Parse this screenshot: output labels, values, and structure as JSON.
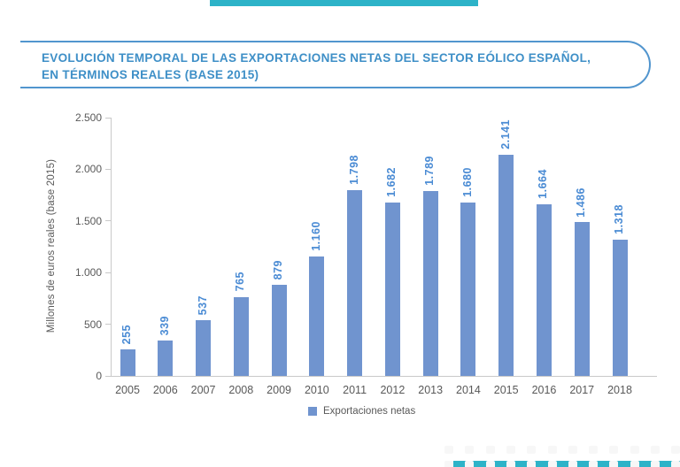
{
  "title_box": {
    "line1": "EVOLUCIÓN TEMPORAL DE LAS EXPORTACIONES NETAS DEL SECTOR EÓLICO ESPAÑOL,",
    "line2": "EN TÉRMINOS REALES (BASE 2015)"
  },
  "chart_data": {
    "type": "bar",
    "title": "EVOLUCIÓN TEMPORAL DE LAS EXPORTACIONES NETAS DEL SECTOR EÓLICO ESPAÑOL, EN TÉRMINOS REALES (BASE 2015)",
    "categories": [
      "2005",
      "2006",
      "2007",
      "2008",
      "2009",
      "2010",
      "2011",
      "2012",
      "2013",
      "2014",
      "2015",
      "2016",
      "2017",
      "2018"
    ],
    "values": [
      255,
      339,
      537,
      765,
      879,
      1160,
      1798,
      1682,
      1789,
      1680,
      2141,
      1664,
      1486,
      1318
    ],
    "value_labels": [
      "255",
      "339",
      "537",
      "765",
      "879",
      "1.160",
      "1.798",
      "1.682",
      "1.789",
      "1.680",
      "2.141",
      "1.664",
      "1.486",
      "1.318"
    ],
    "xlabel": "",
    "ylabel": "Millones de euros reales (base 2015)",
    "ylim": [
      0,
      2500
    ],
    "ytick_values": [
      0,
      500,
      1000,
      1500,
      2000,
      2500
    ],
    "ytick_labels": [
      "0",
      "500",
      "1.000",
      "1.500",
      "2.000",
      "2.500"
    ],
    "grid": false,
    "legend_position": "bottom",
    "legend": [
      {
        "label": "Exportaciones netas",
        "color": "#7094cf"
      }
    ]
  },
  "colors": {
    "accent_teal": "#2db3c8",
    "title_blue": "#3e8fc7",
    "box_border_blue": "#5195ce",
    "bar_blue": "#7094cf",
    "value_label_blue": "#4a8bd4",
    "axis_gray": "#c9c9c9",
    "text_gray": "#595959",
    "dot_pattern_gray": "#f7f7f7"
  }
}
